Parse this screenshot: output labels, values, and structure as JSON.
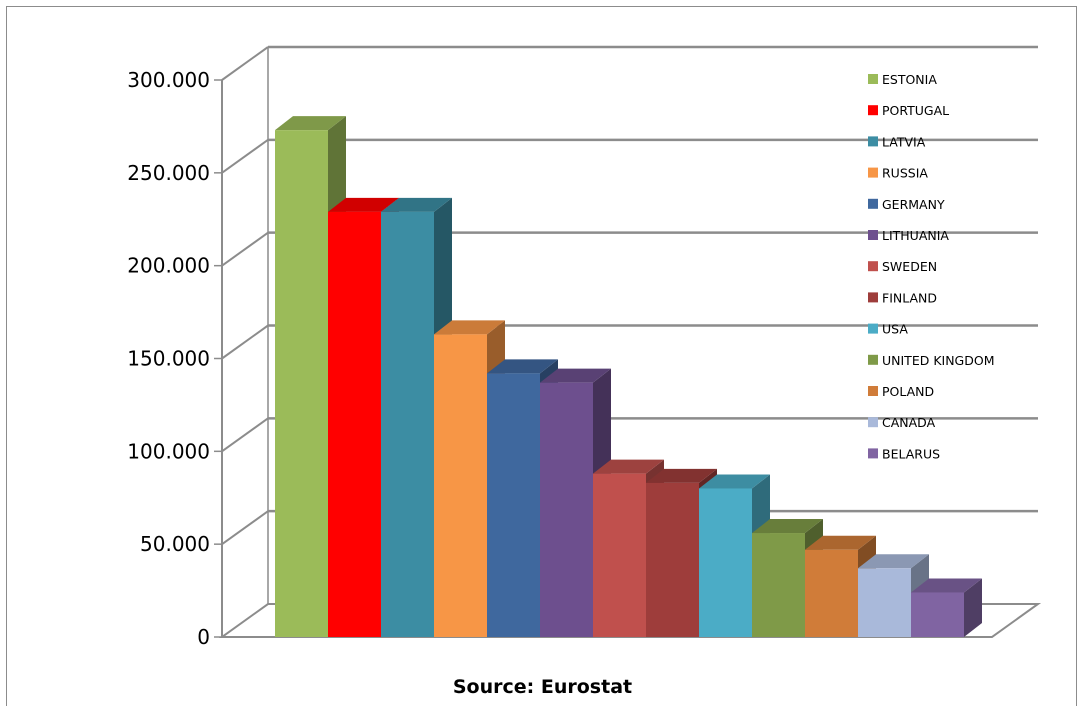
{
  "chart_data": {
    "type": "bar",
    "title": "",
    "xlabel": "",
    "ylabel": "",
    "ylim": [
      0,
      300000
    ],
    "yticks": [
      0,
      50000,
      100000,
      150000,
      200000,
      250000,
      300000
    ],
    "ytick_labels": [
      "0",
      "50.000",
      "100.000",
      "150.000",
      "200.000",
      "250.000",
      "300.000"
    ],
    "grid": true,
    "legend_position": "right",
    "source": "Source: Eurostat",
    "categories": [
      "ESTONIA",
      "PORTUGAL",
      "LATVIA",
      "RUSSIA",
      "GERMANY",
      "LITHUANIA",
      "SWEDEN",
      "FINLAND",
      "USA",
      "UNITED KINGDOM",
      "POLAND",
      "CANADA",
      "BELARUS"
    ],
    "values": [
      273000,
      229000,
      229000,
      163000,
      142000,
      137000,
      88000,
      83000,
      80000,
      56000,
      47000,
      37000,
      24000
    ],
    "colors": [
      "#9BBB59",
      "#FF0000",
      "#3C8DA3",
      "#F79646",
      "#3F689E",
      "#6D4F8E",
      "#C0504D",
      "#9E3D3B",
      "#4BACC6",
      "#7F9A48",
      "#D07C39",
      "#A9B9DA",
      "#8064A2"
    ]
  }
}
